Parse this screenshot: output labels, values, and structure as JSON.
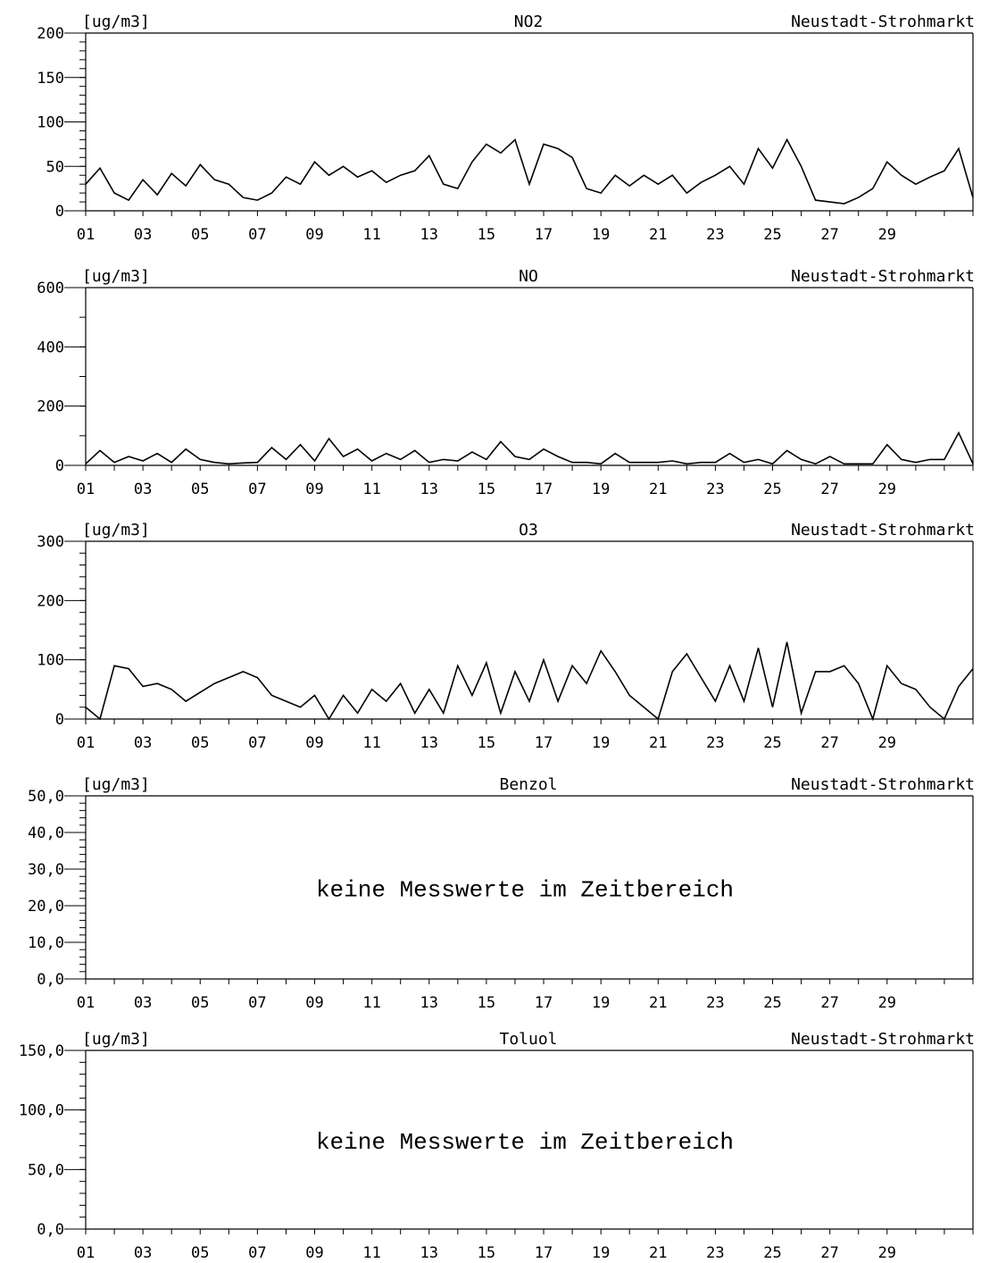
{
  "chart_data": [
    {
      "type": "line",
      "unit": "[ug/m3]",
      "title": "NO2",
      "station": "Neustadt-Strohmarkt",
      "ylim": [
        0,
        200
      ],
      "yticks": [
        "0",
        "50",
        "100",
        "150",
        "200"
      ],
      "yminor_step": 10,
      "xlim": [
        1,
        32
      ],
      "xticks": [
        "01",
        "03",
        "05",
        "07",
        "09",
        "11",
        "13",
        "15",
        "17",
        "19",
        "21",
        "23",
        "25",
        "27",
        "29"
      ],
      "no_data_text": "",
      "series": [
        {
          "x": [
            1,
            1.5,
            2,
            2.5,
            3,
            3.5,
            4,
            4.5,
            5,
            5.5,
            6,
            6.5,
            7,
            7.5,
            8,
            8.5,
            9,
            9.5,
            10,
            10.5,
            11,
            11.5,
            12,
            12.5,
            13,
            13.5,
            14,
            14.5,
            15,
            15.5,
            16,
            16.5,
            17,
            17.5,
            18,
            18.5,
            19,
            19.5,
            20,
            20.5,
            21,
            21.5,
            22,
            22.5,
            23,
            23.5,
            24,
            24.5,
            25,
            25.5,
            26,
            26.5,
            27,
            27.5,
            28,
            28.5,
            29,
            29.5,
            30,
            30.5,
            31,
            31.5,
            32
          ],
          "values": [
            30,
            48,
            20,
            12,
            35,
            18,
            42,
            28,
            52,
            35,
            30,
            15,
            12,
            20,
            38,
            30,
            55,
            40,
            50,
            38,
            45,
            32,
            40,
            45,
            62,
            30,
            25,
            55,
            75,
            65,
            80,
            30,
            75,
            70,
            60,
            25,
            20,
            40,
            28,
            40,
            30,
            40,
            20,
            32,
            40,
            50,
            30,
            70,
            48,
            80,
            50,
            12,
            10,
            8,
            15,
            25,
            55,
            40,
            30,
            38,
            45,
            70,
            15
          ]
        }
      ]
    },
    {
      "type": "line",
      "unit": "[ug/m3]",
      "title": "NO",
      "station": "Neustadt-Strohmarkt",
      "ylim": [
        0,
        600
      ],
      "yticks": [
        "0",
        "200",
        "400",
        "600"
      ],
      "yminor_step": 100,
      "xlim": [
        1,
        32
      ],
      "xticks": [
        "01",
        "03",
        "05",
        "07",
        "09",
        "11",
        "13",
        "15",
        "17",
        "19",
        "21",
        "23",
        "25",
        "27",
        "29"
      ],
      "no_data_text": "",
      "series": [
        {
          "x": [
            1,
            1.5,
            2,
            2.5,
            3,
            3.5,
            4,
            4.5,
            5,
            5.5,
            6,
            6.5,
            7,
            7.5,
            8,
            8.5,
            9,
            9.5,
            10,
            10.5,
            11,
            11.5,
            12,
            12.5,
            13,
            13.5,
            14,
            14.5,
            15,
            15.5,
            16,
            16.5,
            17,
            17.5,
            18,
            18.5,
            19,
            19.5,
            20,
            20.5,
            21,
            21.5,
            22,
            22.5,
            23,
            23.5,
            24,
            24.5,
            25,
            25.5,
            26,
            26.5,
            27,
            27.5,
            28,
            28.5,
            29,
            29.5,
            30,
            30.5,
            31,
            31.5,
            32
          ],
          "values": [
            5,
            50,
            10,
            30,
            15,
            40,
            10,
            55,
            20,
            10,
            5,
            8,
            10,
            60,
            20,
            70,
            15,
            90,
            30,
            55,
            15,
            40,
            20,
            50,
            10,
            20,
            15,
            45,
            20,
            80,
            30,
            20,
            55,
            30,
            10,
            10,
            5,
            40,
            10,
            10,
            10,
            15,
            5,
            10,
            10,
            40,
            10,
            20,
            5,
            50,
            20,
            5,
            30,
            5,
            5,
            5,
            70,
            20,
            10,
            20,
            20,
            110,
            5
          ]
        }
      ]
    },
    {
      "type": "line",
      "unit": "[ug/m3]",
      "title": "O3",
      "station": "Neustadt-Strohmarkt",
      "ylim": [
        0,
        300
      ],
      "yticks": [
        "0",
        "100",
        "200",
        "300"
      ],
      "yminor_step": 20,
      "xlim": [
        1,
        32
      ],
      "xticks": [
        "01",
        "03",
        "05",
        "07",
        "09",
        "11",
        "13",
        "15",
        "17",
        "19",
        "21",
        "23",
        "25",
        "27",
        "29"
      ],
      "no_data_text": "",
      "series": [
        {
          "x": [
            1,
            1.5,
            2,
            2.5,
            3,
            3.5,
            4,
            4.5,
            5,
            5.5,
            6,
            6.5,
            7,
            7.5,
            8,
            8.5,
            9,
            9.5,
            10,
            10.5,
            11,
            11.5,
            12,
            12.5,
            13,
            13.5,
            14,
            14.5,
            15,
            15.5,
            16,
            16.5,
            17,
            17.5,
            18,
            18.5,
            19,
            19.5,
            20,
            20.5,
            21,
            21.5,
            22,
            22.5,
            23,
            23.5,
            24,
            24.5,
            25,
            25.5,
            26,
            26.5,
            27,
            27.5,
            28,
            28.5,
            29,
            29.5,
            30,
            30.5,
            31,
            31.5,
            32
          ],
          "values": [
            20,
            0,
            90,
            85,
            55,
            60,
            50,
            30,
            45,
            60,
            70,
            80,
            70,
            40,
            30,
            20,
            40,
            0,
            40,
            10,
            50,
            30,
            60,
            10,
            50,
            10,
            90,
            40,
            95,
            10,
            80,
            30,
            100,
            30,
            90,
            60,
            115,
            80,
            40,
            20,
            0,
            80,
            110,
            70,
            30,
            90,
            30,
            120,
            20,
            130,
            10,
            80,
            80,
            90,
            60,
            0,
            90,
            60,
            50,
            20,
            0,
            55,
            85
          ]
        }
      ]
    },
    {
      "type": "line",
      "unit": "[ug/m3]",
      "title": "Benzol",
      "station": "Neustadt-Strohmarkt",
      "ylim": [
        0,
        50
      ],
      "yticks": [
        "0,0",
        "10,0",
        "20,0",
        "30,0",
        "40,0",
        "50,0"
      ],
      "yminor_step": 2,
      "xlim": [
        1,
        32
      ],
      "xticks": [
        "01",
        "03",
        "05",
        "07",
        "09",
        "11",
        "13",
        "15",
        "17",
        "19",
        "21",
        "23",
        "25",
        "27",
        "29"
      ],
      "no_data_text": "keine Messwerte im Zeitbereich",
      "series": []
    },
    {
      "type": "line",
      "unit": "[ug/m3]",
      "title": "Toluol",
      "station": "Neustadt-Strohmarkt",
      "ylim": [
        0,
        150
      ],
      "yticks": [
        "0,0",
        "50,0",
        "100,0",
        "150,0"
      ],
      "yminor_step": 10,
      "xlim": [
        1,
        32
      ],
      "xticks": [
        "01",
        "03",
        "05",
        "07",
        "09",
        "11",
        "13",
        "15",
        "17",
        "19",
        "21",
        "23",
        "25",
        "27",
        "29"
      ],
      "no_data_text": "keine Messwerte im Zeitbereich",
      "series": []
    }
  ]
}
